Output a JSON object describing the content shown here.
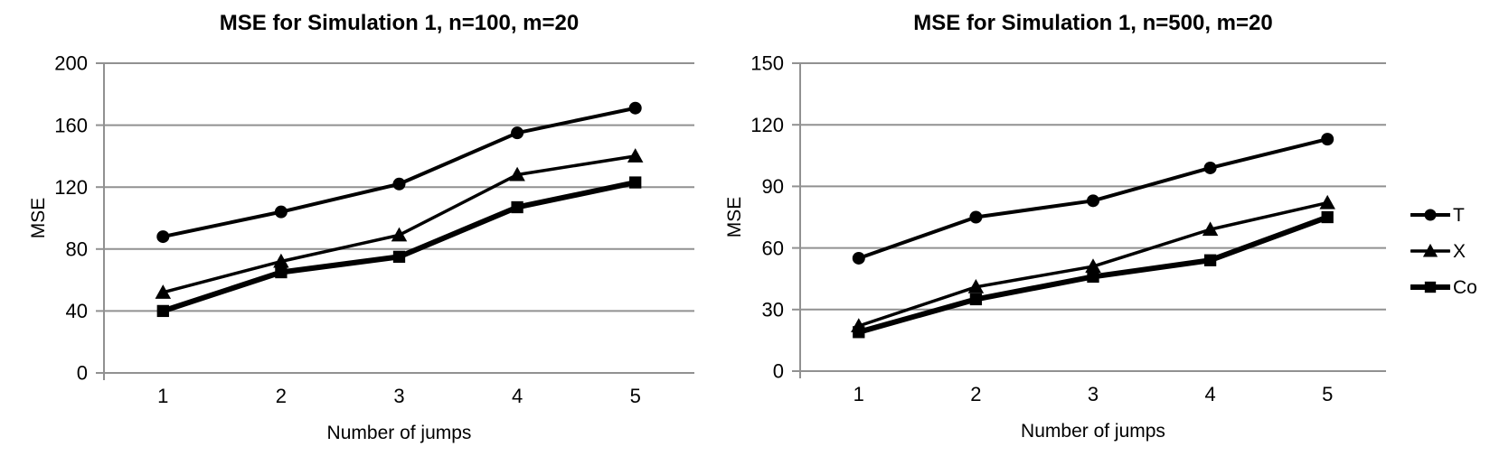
{
  "figure": {
    "background": "#ffffff",
    "text_color": "#000000",
    "gridline_color": "#919191",
    "series_color": "#000000"
  },
  "legend": {
    "position": "right",
    "items": [
      {
        "label": "T",
        "marker": "circle"
      },
      {
        "label": "X",
        "marker": "triangle"
      },
      {
        "label": "Co",
        "marker": "square"
      }
    ]
  },
  "chart_data": [
    {
      "type": "line",
      "title": "MSE for Simulation 1, n=100, m=20",
      "xlabel": "Number of jumps",
      "ylabel": "MSE",
      "categories": [
        1,
        2,
        3,
        4,
        5
      ],
      "ylim": [
        0,
        200
      ],
      "yticks": [
        0,
        40,
        80,
        120,
        160,
        200
      ],
      "grid": true,
      "legend_position": "none",
      "series": [
        {
          "name": "T",
          "marker": "circle",
          "values": [
            88,
            104,
            122,
            155,
            171
          ]
        },
        {
          "name": "X",
          "marker": "triangle",
          "values": [
            52,
            72,
            89,
            128,
            140
          ]
        },
        {
          "name": "Co",
          "marker": "square",
          "values": [
            40,
            65,
            75,
            107,
            123
          ]
        }
      ]
    },
    {
      "type": "line",
      "title": "MSE for Simulation 1, n=500, m=20",
      "xlabel": "Number of jumps",
      "ylabel": "MSE",
      "categories": [
        1,
        2,
        3,
        4,
        5
      ],
      "ylim": [
        0,
        150
      ],
      "yticks": [
        0,
        30,
        60,
        90,
        120,
        150
      ],
      "grid": true,
      "legend_position": "right",
      "series": [
        {
          "name": "T",
          "marker": "circle",
          "values": [
            55,
            75,
            83,
            99,
            113
          ]
        },
        {
          "name": "X",
          "marker": "triangle",
          "values": [
            22,
            41,
            51,
            69,
            82
          ]
        },
        {
          "name": "Co",
          "marker": "square",
          "values": [
            19,
            35,
            46,
            54,
            75
          ]
        }
      ]
    }
  ]
}
